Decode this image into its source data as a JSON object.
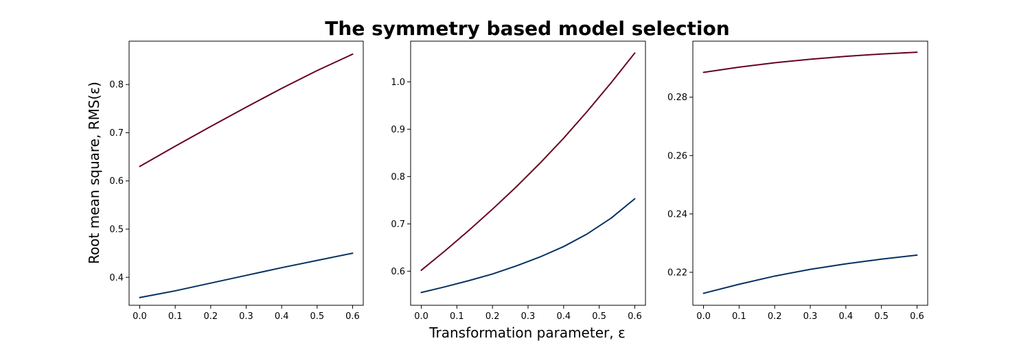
{
  "figure": {
    "title": "The symmetry based model selection",
    "ylabel": "Root mean square, RMS(ε)",
    "xlabel": "Transformation parameter, ε"
  },
  "chart_data": [
    {
      "type": "line",
      "title": "",
      "xlabel": "",
      "ylabel": "Root mean square, RMS(ε)",
      "xlim": [
        -0.03,
        0.63
      ],
      "ylim": [
        0.342,
        0.89
      ],
      "xticks": [
        0.0,
        0.1,
        0.2,
        0.3,
        0.4,
        0.5,
        0.6
      ],
      "yticks": [
        0.4,
        0.5,
        0.6,
        0.7,
        0.8
      ],
      "tick_decimals": 1,
      "x": [
        0.0,
        0.1,
        0.2,
        0.3,
        0.4,
        0.5,
        0.6
      ],
      "series": [
        {
          "color": "#67001f",
          "values": [
            0.63,
            0.672,
            0.713,
            0.753,
            0.792,
            0.829,
            0.863
          ]
        },
        {
          "color": "#053061",
          "values": [
            0.358,
            0.372,
            0.388,
            0.404,
            0.42,
            0.435,
            0.45
          ]
        }
      ]
    },
    {
      "type": "line",
      "title": "",
      "xlabel": "Transformation parameter, ε",
      "ylabel": "",
      "xlim": [
        -0.03,
        0.63
      ],
      "ylim": [
        0.528,
        1.086
      ],
      "xticks": [
        0.0,
        0.1,
        0.2,
        0.3,
        0.4,
        0.5,
        0.6
      ],
      "yticks": [
        0.6,
        0.7,
        0.8,
        0.9,
        1.0
      ],
      "tick_decimals": 1,
      "x": [
        0.0,
        0.0667,
        0.1333,
        0.2,
        0.2667,
        0.3333,
        0.4,
        0.4667,
        0.5333,
        0.6
      ],
      "series": [
        {
          "color": "#67001f",
          "values": [
            0.602,
            0.643,
            0.686,
            0.731,
            0.778,
            0.828,
            0.881,
            0.938,
            0.998,
            1.061
          ]
        },
        {
          "color": "#053061",
          "values": [
            0.555,
            0.567,
            0.58,
            0.594,
            0.611,
            0.63,
            0.652,
            0.679,
            0.712,
            0.753
          ]
        }
      ]
    },
    {
      "type": "line",
      "title": "",
      "xlabel": "",
      "ylabel": "",
      "xlim": [
        -0.03,
        0.63
      ],
      "ylim": [
        0.2087,
        0.2992
      ],
      "xticks": [
        0.0,
        0.1,
        0.2,
        0.3,
        0.4,
        0.5,
        0.6
      ],
      "yticks": [
        0.22,
        0.24,
        0.26,
        0.28
      ],
      "tick_decimals": 2,
      "x": [
        0.0,
        0.1,
        0.2,
        0.3,
        0.4,
        0.5,
        0.6
      ],
      "series": [
        {
          "color": "#67001f",
          "values": [
            0.2885,
            0.2903,
            0.2918,
            0.293,
            0.294,
            0.2948,
            0.2954
          ]
        },
        {
          "color": "#053061",
          "values": [
            0.2128,
            0.2159,
            0.2187,
            0.221,
            0.2229,
            0.2245,
            0.2259
          ]
        }
      ]
    }
  ]
}
